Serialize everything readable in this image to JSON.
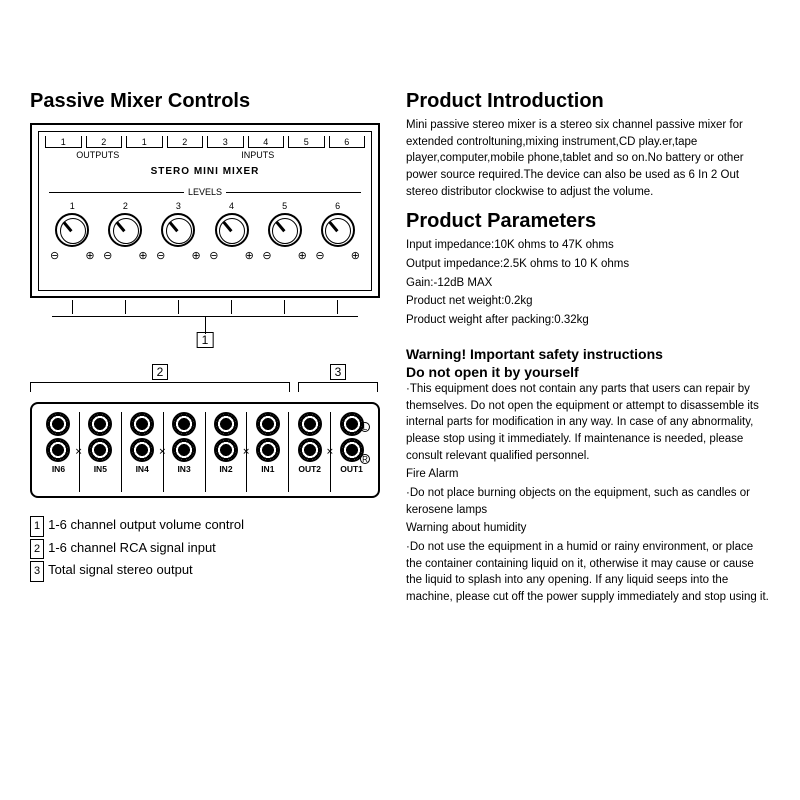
{
  "left": {
    "title": "Passive Mixer Controls",
    "panel": {
      "outputs": [
        "1",
        "2"
      ],
      "inputs": [
        "1",
        "2",
        "3",
        "4",
        "5",
        "6"
      ],
      "outputs_label": "OUTPUTS",
      "inputs_label": "INPUTS",
      "device_title": "STERO MINI MIXER",
      "levels_label": "LEVELS",
      "knob_numbers": [
        "1",
        "2",
        "3",
        "4",
        "5",
        "6"
      ],
      "min_symbol": "⊖",
      "max_symbol": "⊕",
      "callout1": "1"
    },
    "rear": {
      "callout2": "2",
      "callout3": "3",
      "jacks": [
        "IN6",
        "IN5",
        "IN4",
        "IN3",
        "IN2",
        "IN1",
        "OUT2",
        "OUT1"
      ],
      "L": "L",
      "R": "R"
    },
    "legend": [
      {
        "n": "1",
        "t": "1-6 channel output volume control"
      },
      {
        "n": "2",
        "t": "1-6 channel RCA signal input"
      },
      {
        "n": "3",
        "t": "Total signal stereo output"
      }
    ]
  },
  "right": {
    "intro_h": "Product Introduction",
    "intro_p": "Mini passive stereo mixer is a stereo six channel passive mixer for extended controltuning,mixing instrument,CD play.er,tape player,computer,mobile phone,tablet and so on.No battery or other power source required.The device can also be used as 6 In 2 Out stereo distributor clockwise to adjust the volume.",
    "params_h": "Product Parameters",
    "params": [
      "Input impedance:10K ohms to 47K ohms",
      "Output impedance:2.5K ohms to 10 K ohms",
      "Gain:-12dB MAX",
      "Product net weight:0.2kg",
      "Product weight after packing:0.32kg"
    ],
    "warn_h1": "Warning! Important safety instructions",
    "warn_h2": "Do not open it by yourself",
    "warn_paras": [
      "·This equipment does not contain any parts that users can repair by themselves. Do not open the equipment or attempt to disassemble its internal parts for modification in any way. In case of any abnormality, please stop using it immediately. If maintenance is needed, please consult relevant qualified personnel.",
      "Fire Alarm",
      "·Do not place burning objects on the equipment, such as candles or kerosene lamps",
      "Warning about humidity",
      "·Do not use the equipment in a humid or rainy environment, or place the container containing liquid on it, otherwise it may cause or cause the liquid to splash into any opening. If any liquid seeps into the machine, please cut off the power supply immediately and stop using it."
    ]
  },
  "style": {
    "border_color": "#000000",
    "bg_color": "#ffffff",
    "body_font_size": 11.5,
    "h1_size": 20,
    "h2_size": 18
  }
}
